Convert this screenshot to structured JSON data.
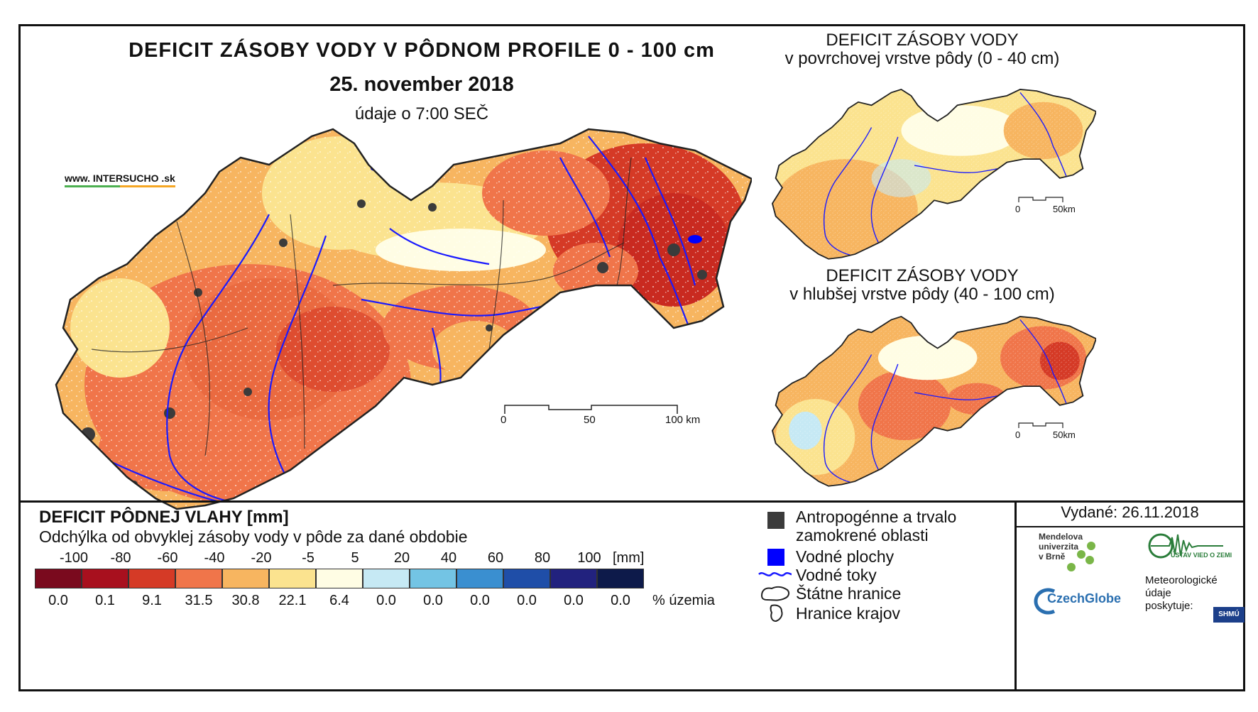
{
  "title": "DEFICIT ZÁSOBY VODY V PÔDNOM PROFILE 0 - 100 cm",
  "date": "25. november 2018",
  "time": "údaje o 7:00 SEČ",
  "website": "www. INTERSUCHO .sk",
  "top_map": {
    "title_line1": "DEFICIT ZÁSOBY VODY",
    "title_line2": "v povrchovej vrstve pôdy (0 - 40 cm)",
    "scale_labels": [
      "0",
      "50km"
    ]
  },
  "bottom_map": {
    "title_line1": "DEFICIT ZÁSOBY VODY",
    "title_line2": "v hlubšej vrstve pôdy (40 - 100 cm)",
    "scale_labels": [
      "0",
      "50km"
    ]
  },
  "main_scale": {
    "labels": [
      "0",
      "50",
      "100 km"
    ]
  },
  "legend": {
    "title": "DEFICIT PÔDNEJ VLAHY [mm]",
    "subtitle": "Odchýlka od obvyklej zásoby vody v pôde za dané obdobie",
    "unit_label": "[mm]",
    "pct_label": "% územia",
    "bounds": [
      "-100",
      "-80",
      "-60",
      "-40",
      "-20",
      "-5",
      "5",
      "20",
      "40",
      "60",
      "80",
      "100"
    ],
    "classes": [
      {
        "color": "#7a0a1e",
        "percent": "0.0"
      },
      {
        "color": "#a8101e",
        "percent": "0.1"
      },
      {
        "color": "#d53a26",
        "percent": "9.1"
      },
      {
        "color": "#f0754a",
        "percent": "31.5"
      },
      {
        "color": "#f7b560",
        "percent": "30.8"
      },
      {
        "color": "#fbe38f",
        "percent": "22.1"
      },
      {
        "color": "#fffde4",
        "percent": "6.4"
      },
      {
        "color": "#c6e9f4",
        "percent": "0.0"
      },
      {
        "color": "#73c4e4",
        "percent": "0.0"
      },
      {
        "color": "#3a8fd0",
        "percent": "0.0"
      },
      {
        "color": "#1f4ea8",
        "percent": "0.0"
      },
      {
        "color": "#22227e",
        "percent": "0.0"
      },
      {
        "color": "#0d1a4a",
        "percent": "0.0"
      }
    ]
  },
  "symbols": {
    "anthropogenic_line1": "Antropogénne a trvalo",
    "anthropogenic_line2": "zamokrené oblasti",
    "water_areas": "Vodné plochy",
    "rivers": "Vodné toky",
    "state_border": "Štátne hranice",
    "region_border": "Hranice krajov"
  },
  "issued": "Vydané: 26.11.2018",
  "logos": {
    "mendel_line1": "Mendelova",
    "mendel_line2": "univerzita",
    "mendel_line3": "v Brně",
    "czechglobe": "CzechGlobe",
    "uvgz": "ÚSTAV VIED O ZEMI",
    "meteo_line1": "Meteorologické",
    "meteo_line2": "údaje",
    "meteo_line3": "poskytuje:",
    "shmu": "SHMÚ"
  },
  "colors": {
    "anthropogenic": "#3b3b3b",
    "water": "#0000ff",
    "river": "#1a1aff",
    "border": "#222222",
    "intersucho_green": "#4caf50",
    "intersucho_orange": "#f5a623"
  }
}
